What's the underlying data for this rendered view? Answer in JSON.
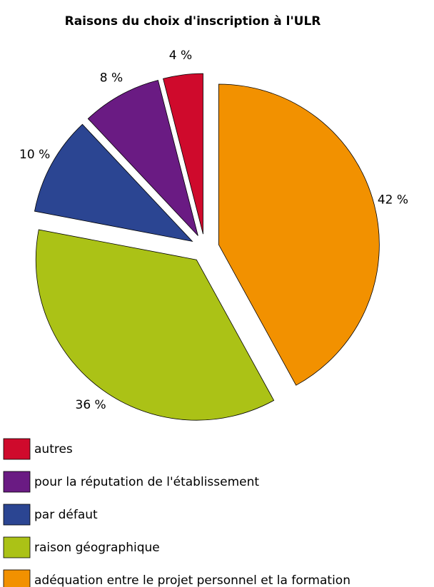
{
  "chart_data": {
    "type": "pie",
    "title": "Raisons du choix d'inscription à l'ULR",
    "categories": [
      "autres",
      "pour la réputation de l'établissement",
      "par défaut",
      "raison géographique",
      "adéquation entre le projet personnel et la formation"
    ],
    "values": [
      4,
      8,
      10,
      36,
      42
    ],
    "value_labels": [
      "4 %",
      "8 %",
      "10 %",
      "36 %",
      "42 %"
    ],
    "colors": [
      "#cf0a2c",
      "#6a1b83",
      "#2b4592",
      "#abc216",
      "#f29100"
    ]
  }
}
